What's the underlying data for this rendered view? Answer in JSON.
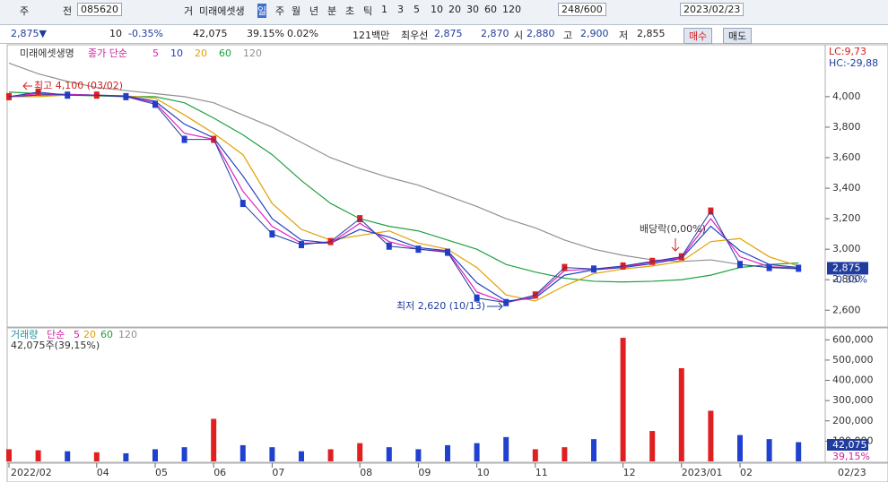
{
  "toolbar": {
    "items": [
      "주",
      "전",
      "085620",
      "거",
      "미래에셋생",
      "일",
      "주",
      "월",
      "년",
      "분",
      "초",
      "틱",
      "1",
      "3",
      "5",
      "10",
      "20",
      "30",
      "60",
      "120",
      "248/600",
      "2023/02/23"
    ]
  },
  "quote": {
    "items": [
      "2,875▼",
      "10",
      "-0.35%",
      "42,075",
      "39.15%",
      "0.02%",
      "121백만",
      "최우선",
      "2,875",
      "2,870",
      "시",
      "2,880",
      "고",
      "2,900",
      "저",
      "2,855",
      "매수",
      "매도"
    ]
  },
  "panel_title": "미래에셋생명",
  "legend_prefix": "종가 단순",
  "right_labels": [
    "LC:9,73",
    "HC:-29,88"
  ],
  "last_price": "2,875",
  "last_change": "-0.35%",
  "volume_legend": [
    "거래량",
    "단순",
    "5",
    "20",
    "60",
    "120"
  ],
  "volume_caption": "42,075주(39,15%)",
  "last_volume": "42,075",
  "last_volume_pct": "39,15%",
  "end_date": "02/23",
  "chart_data": [
    {
      "type": "line",
      "categories": [
        "2022/02",
        null,
        null,
        "04",
        null,
        "05",
        null,
        "06",
        null,
        "07",
        null,
        null,
        "08",
        null,
        "09",
        null,
        "10",
        null,
        "11",
        null,
        null,
        "12",
        null,
        "2023/01",
        null,
        "02",
        null,
        null
      ],
      "values": [
        4000,
        4030,
        4010,
        4010,
        4000,
        3950,
        3720,
        3720,
        3300,
        3100,
        3030,
        3050,
        3200,
        3020,
        3000,
        2980,
        2680,
        2650,
        2700,
        2880,
        2870,
        2890,
        2920,
        2950,
        3250,
        2900,
        2880,
        2875
      ],
      "color": "#1f3c9e",
      "series": [
        {
          "name": "5",
          "color": "#e020c0",
          "values": [
            4000,
            4020,
            4015,
            4010,
            4000,
            3960,
            3760,
            3720,
            3380,
            3150,
            3040,
            3040,
            3170,
            3050,
            3000,
            2985,
            2720,
            2650,
            2690,
            2860,
            2870,
            2885,
            2915,
            2945,
            3200,
            2950,
            2885,
            2878
          ]
        },
        {
          "name": "10",
          "color": "#2040c0",
          "values": [
            4000,
            4010,
            4015,
            4010,
            4005,
            3970,
            3820,
            3730,
            3480,
            3200,
            3060,
            3040,
            3130,
            3080,
            3010,
            2990,
            2780,
            2660,
            2680,
            2830,
            2865,
            2880,
            2905,
            2940,
            3150,
            2990,
            2900,
            2880
          ]
        },
        {
          "name": "20",
          "color": "#e0a000",
          "values": [
            4000,
            4000,
            4010,
            4010,
            4005,
            3990,
            3880,
            3760,
            3620,
            3300,
            3130,
            3060,
            3090,
            3120,
            3040,
            3000,
            2880,
            2700,
            2660,
            2760,
            2840,
            2870,
            2890,
            2920,
            3050,
            3070,
            2950,
            2890
          ]
        },
        {
          "name": "60",
          "color": "#20a040",
          "values": [
            4030,
            4020,
            4010,
            4005,
            4000,
            4000,
            3960,
            3860,
            3750,
            3620,
            3450,
            3300,
            3200,
            3150,
            3120,
            3060,
            3000,
            2900,
            2850,
            2810,
            2790,
            2785,
            2790,
            2800,
            2830,
            2880,
            2900,
            2910
          ]
        },
        {
          "name": "120",
          "color": "#909090",
          "values": [
            4220,
            4150,
            4100,
            4060,
            4040,
            4020,
            4000,
            3960,
            3880,
            3800,
            3700,
            3600,
            3530,
            3470,
            3420,
            3350,
            3280,
            3200,
            3140,
            3060,
            3000,
            2960,
            2930,
            2920,
            2930,
            2900,
            2880,
            2870
          ]
        }
      ],
      "ylim": [
        2490,
        4340
      ],
      "yticks": [
        {
          "value": 2600,
          "label": "2,600"
        },
        {
          "value": 2800,
          "label": "2,800"
        },
        {
          "value": 3000,
          "label": "3,000"
        },
        {
          "value": 3200,
          "label": "3,200"
        },
        {
          "value": 3400,
          "label": "3,400"
        },
        {
          "value": 3600,
          "label": "3,600"
        },
        {
          "value": 3800,
          "label": "3,800"
        },
        {
          "value": 4000,
          "label": "4,000"
        }
      ],
      "grid": false,
      "annotations": [
        "최고 4,100 (03/02)",
        "최저 2,620 (10/13)",
        "배당락(0,00%)"
      ]
    },
    {
      "type": "bar",
      "values": [
        60000,
        55000,
        50000,
        45000,
        40000,
        60000,
        70000,
        210000,
        80000,
        70000,
        50000,
        60000,
        90000,
        70000,
        60000,
        80000,
        90000,
        120000,
        60000,
        70000,
        110000,
        610000,
        150000,
        460000,
        250000,
        130000,
        110000,
        95000
      ],
      "up_color": "#e02020",
      "down_color": "#2040d0",
      "ylim": [
        0,
        650000
      ],
      "yticks": [
        {
          "value": 100000,
          "label": "100,000"
        },
        {
          "value": 200000,
          "label": "200,000"
        },
        {
          "value": 300000,
          "label": "300,000"
        },
        {
          "value": 400000,
          "label": "400,000"
        },
        {
          "value": 500000,
          "label": "500,000"
        },
        {
          "value": 600000,
          "label": "600,000"
        }
      ],
      "grid": false
    }
  ]
}
